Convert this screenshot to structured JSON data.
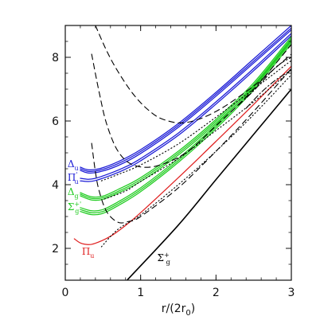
{
  "chart_data": {
    "type": "line",
    "xlabel": "r/(2r",
    "xlabel_sub": "0",
    "xlabel_end": ")",
    "ylabel": "",
    "xlim": [
      0,
      3
    ],
    "ylim": [
      1,
      9
    ],
    "x_ticks": [
      "0",
      "1",
      "2",
      "3"
    ],
    "x_tick_values": [
      0,
      1,
      2,
      3
    ],
    "y_ticks": [
      "2",
      "4",
      "6",
      "8"
    ],
    "y_tick_values": [
      2,
      4,
      6,
      8
    ],
    "grid": false,
    "colors": {
      "blue": "#1a1ad6",
      "green": "#22cc22",
      "red": "#e02020",
      "black": "#000000"
    },
    "series": [
      {
        "id": "delta_u_a",
        "color": "blue",
        "style": "solid",
        "x": [
          0.2,
          0.3,
          0.45,
          0.7,
          1.0,
          1.5,
          2.0,
          2.5,
          3.0
        ],
        "y": [
          4.55,
          4.47,
          4.5,
          4.72,
          5.1,
          5.92,
          6.9,
          7.95,
          9.0
        ]
      },
      {
        "id": "delta_u_b",
        "color": "blue",
        "style": "solid",
        "x": [
          0.2,
          0.3,
          0.45,
          0.7,
          1.0,
          1.5,
          2.0,
          2.5,
          3.0
        ],
        "y": [
          4.5,
          4.42,
          4.45,
          4.66,
          5.04,
          5.86,
          6.84,
          7.88,
          8.92
        ]
      },
      {
        "id": "delta_u_c",
        "color": "blue",
        "style": "solid",
        "x": [
          0.2,
          0.3,
          0.45,
          0.7,
          1.0,
          1.5,
          2.0,
          2.5,
          3.0
        ],
        "y": [
          4.45,
          4.37,
          4.4,
          4.6,
          4.98,
          5.8,
          6.78,
          7.82,
          8.86
        ]
      },
      {
        "id": "pi_u_prime_a",
        "color": "blue",
        "style": "solid",
        "x": [
          0.2,
          0.3,
          0.4,
          0.6,
          0.8,
          1.0,
          1.5,
          2.0,
          2.5,
          3.0
        ],
        "y": [
          4.2,
          4.17,
          4.2,
          4.36,
          4.56,
          4.82,
          5.62,
          6.6,
          7.65,
          8.75
        ]
      },
      {
        "id": "pi_u_prime_b",
        "color": "blue",
        "style": "solid",
        "x": [
          0.2,
          0.3,
          0.4,
          0.6,
          0.8,
          1.0,
          1.5,
          2.0,
          2.5,
          3.0
        ],
        "y": [
          4.12,
          4.1,
          4.13,
          4.29,
          4.49,
          4.75,
          5.55,
          6.53,
          7.58,
          8.68
        ]
      },
      {
        "id": "delta_g_a",
        "color": "green",
        "style": "solid",
        "x": [
          0.2,
          0.35,
          0.5,
          0.7,
          1.0,
          1.5,
          2.0,
          2.5,
          3.0
        ],
        "y": [
          3.75,
          3.62,
          3.64,
          3.85,
          4.22,
          5.05,
          6.05,
          7.2,
          8.65
        ]
      },
      {
        "id": "delta_g_b",
        "color": "green",
        "style": "solid",
        "x": [
          0.2,
          0.35,
          0.5,
          0.7,
          1.0,
          1.5,
          2.0,
          2.5,
          3.0
        ],
        "y": [
          3.7,
          3.57,
          3.59,
          3.79,
          4.16,
          4.99,
          5.99,
          7.14,
          8.59
        ]
      },
      {
        "id": "delta_g_c",
        "color": "green",
        "style": "solid",
        "x": [
          0.2,
          0.35,
          0.5,
          0.7,
          1.0,
          1.5,
          2.0,
          2.5,
          3.0
        ],
        "y": [
          3.65,
          3.52,
          3.54,
          3.74,
          4.1,
          4.93,
          5.93,
          7.08,
          8.53
        ]
      },
      {
        "id": "sigma_g_prime_a",
        "color": "green",
        "style": "solid",
        "x": [
          0.2,
          0.35,
          0.5,
          0.7,
          1.0,
          1.5,
          2.0,
          2.5,
          3.0
        ],
        "y": [
          3.28,
          3.18,
          3.22,
          3.46,
          3.9,
          4.82,
          5.88,
          7.1,
          8.55
        ]
      },
      {
        "id": "sigma_g_prime_b",
        "color": "green",
        "style": "solid",
        "x": [
          0.2,
          0.35,
          0.5,
          0.7,
          1.0,
          1.5,
          2.0,
          2.5,
          3.0
        ],
        "y": [
          3.22,
          3.12,
          3.16,
          3.4,
          3.84,
          4.76,
          5.82,
          7.04,
          8.49
        ]
      },
      {
        "id": "sigma_g_prime_c",
        "color": "green",
        "style": "solid",
        "x": [
          0.2,
          0.35,
          0.5,
          0.7,
          1.0,
          1.5,
          2.0,
          2.5,
          3.0
        ],
        "y": [
          3.16,
          3.06,
          3.1,
          3.34,
          3.78,
          4.7,
          5.76,
          6.98,
          8.43
        ]
      },
      {
        "id": "pi_u",
        "color": "red",
        "style": "solid",
        "x": [
          0.12,
          0.2,
          0.3,
          0.4,
          0.6,
          0.8,
          1.0,
          1.5,
          2.0,
          2.5,
          3.0
        ],
        "y": [
          2.3,
          2.17,
          2.12,
          2.16,
          2.38,
          2.72,
          3.12,
          4.22,
          5.36,
          6.52,
          7.72
        ]
      },
      {
        "id": "sigma_g_plus",
        "color": "black",
        "style": "solid",
        "x": [
          0.82,
          1.5,
          2.0,
          2.5,
          3.0
        ],
        "y": [
          1.0,
          2.73,
          4.16,
          5.58,
          7.0
        ]
      },
      {
        "id": "dashed_1",
        "color": "black",
        "style": "dashed",
        "x": [
          0.4,
          0.55,
          0.7,
          0.9,
          1.1,
          1.3,
          1.6,
          2.0,
          2.5,
          3.0
        ],
        "y": [
          9.0,
          8.2,
          7.55,
          6.85,
          6.35,
          6.05,
          5.95,
          6.3,
          7.1,
          8.1
        ]
      },
      {
        "id": "dashed_2",
        "color": "black",
        "style": "dashed",
        "x": [
          0.35,
          0.45,
          0.55,
          0.7,
          0.9,
          1.2,
          1.6,
          2.0,
          2.5,
          3.0
        ],
        "y": [
          8.1,
          6.9,
          5.9,
          5.05,
          4.62,
          4.58,
          5.0,
          5.85,
          7.0,
          8.4
        ]
      },
      {
        "id": "dashed_3",
        "color": "black",
        "style": "dashed",
        "x": [
          0.35,
          0.4,
          0.45,
          0.55,
          0.7,
          0.85,
          1.0,
          1.5,
          2.0,
          2.5,
          3.0
        ],
        "y": [
          5.3,
          4.4,
          3.8,
          3.15,
          2.82,
          2.85,
          3.0,
          3.9,
          5.05,
          6.3,
          7.65
        ]
      },
      {
        "id": "dotted_1",
        "color": "black",
        "style": "dotted",
        "x": [
          0.48,
          0.7,
          1.0,
          1.5,
          2.0,
          2.5,
          3.0
        ],
        "y": [
          4.12,
          4.32,
          4.62,
          5.28,
          6.12,
          7.0,
          7.9
        ]
      },
      {
        "id": "dotted_2",
        "color": "black",
        "style": "dotted",
        "x": [
          0.52,
          0.8,
          1.0,
          1.5,
          2.0,
          2.5,
          3.0
        ],
        "y": [
          3.55,
          3.8,
          4.1,
          4.82,
          5.7,
          6.6,
          7.6
        ]
      },
      {
        "id": "dotted_3",
        "color": "black",
        "style": "dotted",
        "x": [
          0.48,
          0.7,
          1.0,
          1.5,
          2.0,
          2.5,
          3.0
        ],
        "y": [
          2.05,
          2.6,
          3.05,
          4.0,
          5.05,
          6.2,
          7.45
        ]
      },
      {
        "id": "dashdot_1",
        "color": "black",
        "style": "dashdot",
        "x": [
          2.3,
          2.5,
          2.8,
          3.0
        ],
        "y": [
          6.5,
          6.95,
          7.7,
          8.0
        ]
      },
      {
        "id": "dashdot_2",
        "color": "black",
        "style": "dashdot",
        "x": [
          2.4,
          2.6,
          2.8,
          3.0
        ],
        "y": [
          6.4,
          6.9,
          7.3,
          7.6
        ]
      }
    ],
    "labels": [
      {
        "id": "delta_u",
        "text": "Δ",
        "sub": "u",
        "sup": "",
        "color": "blue",
        "x": 0.03,
        "y": 4.55
      },
      {
        "id": "pi_u_prime",
        "text": "Π",
        "sub": "u",
        "sup": "'",
        "color": "blue",
        "x": 0.03,
        "y": 4.12
      },
      {
        "id": "delta_g",
        "text": "Δ",
        "sub": "g",
        "sup": "",
        "color": "green",
        "x": 0.03,
        "y": 3.68
      },
      {
        "id": "sigma_g_prime",
        "text": "Σ",
        "sub": "g",
        "sup": "+'",
        "color": "green",
        "x": 0.03,
        "y": 3.2
      },
      {
        "id": "pi_u_red",
        "text": "Π",
        "sub": "u",
        "sup": "",
        "color": "red",
        "x": 0.22,
        "y": 1.8
      },
      {
        "id": "sigma_g_plus",
        "text": "Σ",
        "sub": "g",
        "sup": "+",
        "color": "black",
        "x": 1.22,
        "y": 1.6
      }
    ]
  }
}
